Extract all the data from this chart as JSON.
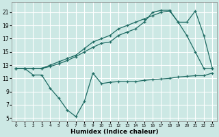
{
  "xlabel": "Humidex (Indice chaleur)",
  "bg_color": "#cce8e4",
  "grid_color": "#ffffff",
  "line_color": "#1e6b63",
  "xlim": [
    -0.5,
    23.5
  ],
  "ylim": [
    4.5,
    22.5
  ],
  "xticks": [
    0,
    1,
    2,
    3,
    4,
    5,
    6,
    7,
    8,
    9,
    10,
    11,
    12,
    13,
    14,
    15,
    16,
    17,
    18,
    19,
    20,
    21,
    22,
    23
  ],
  "yticks": [
    5,
    7,
    9,
    11,
    13,
    15,
    17,
    19,
    21
  ],
  "line1_x": [
    0,
    1,
    2,
    3,
    4,
    5,
    6,
    7,
    8,
    9,
    10,
    11,
    12,
    13,
    14,
    15,
    16,
    17,
    18,
    19,
    20,
    21,
    22,
    23
  ],
  "line1_y": [
    12.5,
    12.5,
    11.5,
    11.5,
    9.5,
    8.0,
    6.2,
    5.2,
    7.5,
    11.8,
    10.2,
    10.4,
    10.5,
    10.5,
    10.5,
    10.7,
    10.8,
    10.9,
    11.0,
    11.2,
    11.3,
    11.4,
    11.4,
    11.8
  ],
  "line2_x": [
    0,
    1,
    2,
    3,
    4,
    5,
    6,
    7,
    8,
    9,
    10,
    11,
    12,
    13,
    14,
    15,
    16,
    17,
    18,
    19,
    20,
    21,
    22,
    23
  ],
  "line2_y": [
    12.5,
    12.5,
    12.5,
    12.5,
    12.8,
    13.2,
    13.7,
    14.3,
    15.0,
    15.7,
    16.3,
    16.5,
    17.5,
    18.0,
    18.5,
    19.5,
    21.0,
    21.3,
    21.3,
    19.5,
    17.5,
    15.0,
    12.5,
    12.5
  ],
  "line3_x": [
    0,
    1,
    2,
    3,
    4,
    5,
    6,
    7,
    8,
    9,
    10,
    11,
    12,
    13,
    14,
    15,
    16,
    17,
    18,
    19,
    20,
    21,
    22,
    23
  ],
  "line3_y": [
    12.5,
    12.5,
    12.5,
    12.5,
    13.0,
    13.5,
    14.0,
    14.5,
    15.5,
    16.5,
    17.0,
    17.5,
    18.5,
    19.0,
    19.5,
    20.0,
    20.5,
    21.0,
    21.2,
    19.5,
    19.5,
    21.2,
    17.5,
    12.5
  ]
}
